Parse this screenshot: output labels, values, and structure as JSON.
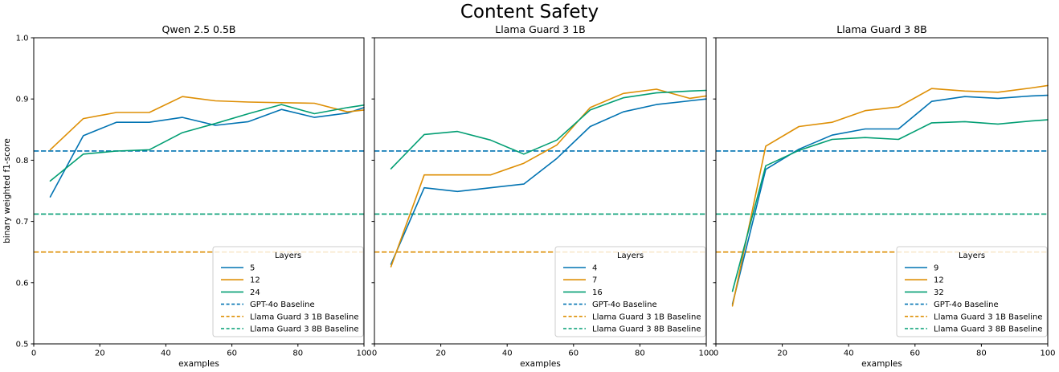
{
  "suptitle": "Content Safety",
  "figure": {
    "background": "#ffffff",
    "text_color": "#000000",
    "spine_color": "#000000",
    "colors": {
      "blue": "#0173B2",
      "orange": "#DE8F05",
      "green": "#029E73"
    },
    "legend": {
      "border_color": "#cccccc",
      "fill": "rgba(255,255,255,0.8)"
    }
  },
  "chart_data": [
    {
      "type": "line",
      "title": "Qwen 2.5 0.5B",
      "xlabel": "examples",
      "ylabel": "binary weighted f1-score",
      "legend_title": "Layers",
      "xlim": [
        0,
        100
      ],
      "ylim": [
        0.5,
        1.0
      ],
      "xticks": [
        0,
        20,
        40,
        60,
        80,
        100
      ],
      "yticks": [
        0.5,
        0.6,
        0.7,
        0.8,
        0.9,
        1.0
      ],
      "show_ytick_labels": true,
      "x": [
        5,
        15,
        25,
        35,
        45,
        55,
        65,
        75,
        85,
        95,
        100
      ],
      "series": [
        {
          "label": "5",
          "color": "blue",
          "dash": false,
          "values": [
            0.74,
            0.84,
            0.862,
            0.862,
            0.87,
            0.857,
            0.863,
            0.883,
            0.87,
            0.877,
            0.886
          ]
        },
        {
          "label": "12",
          "color": "orange",
          "dash": false,
          "values": [
            0.817,
            0.868,
            0.878,
            0.878,
            0.904,
            0.897,
            0.895,
            0.894,
            0.893,
            0.879,
            0.882
          ]
        },
        {
          "label": "24",
          "color": "green",
          "dash": false,
          "values": [
            0.766,
            0.81,
            0.815,
            0.817,
            0.845,
            0.86,
            0.876,
            0.891,
            0.876,
            0.886,
            0.89
          ]
        },
        {
          "label": "GPT-4o Baseline",
          "color": "blue",
          "dash": true,
          "constant": 0.815
        },
        {
          "label": "Llama Guard 3 1B Baseline",
          "color": "orange",
          "dash": true,
          "constant": 0.65
        },
        {
          "label": "Llama Guard 3 8B Baseline",
          "color": "green",
          "dash": true,
          "constant": 0.712
        }
      ]
    },
    {
      "type": "line",
      "title": "Llama Guard 3 1B",
      "xlabel": "examples",
      "ylabel": "",
      "legend_title": "Layers",
      "xlim": [
        0,
        100
      ],
      "ylim": [
        0.5,
        1.0
      ],
      "xticks": [
        0,
        20,
        40,
        60,
        80,
        100
      ],
      "yticks": [
        0.5,
        0.6,
        0.7,
        0.8,
        0.9,
        1.0
      ],
      "show_ytick_labels": false,
      "x": [
        5,
        15,
        25,
        35,
        45,
        55,
        65,
        75,
        85,
        95,
        100
      ],
      "series": [
        {
          "label": "4",
          "color": "blue",
          "dash": false,
          "values": [
            0.63,
            0.755,
            0.749,
            0.755,
            0.761,
            0.803,
            0.855,
            0.879,
            0.891,
            0.897,
            0.9
          ]
        },
        {
          "label": "7",
          "color": "orange",
          "dash": false,
          "values": [
            0.626,
            0.776,
            0.776,
            0.776,
            0.795,
            0.825,
            0.886,
            0.909,
            0.916,
            0.901,
            0.905
          ]
        },
        {
          "label": "16",
          "color": "green",
          "dash": false,
          "values": [
            0.786,
            0.842,
            0.847,
            0.833,
            0.81,
            0.833,
            0.882,
            0.902,
            0.91,
            0.913,
            0.914
          ]
        },
        {
          "label": "GPT-4o Baseline",
          "color": "blue",
          "dash": true,
          "constant": 0.815
        },
        {
          "label": "Llama Guard 3 1B Baseline",
          "color": "orange",
          "dash": true,
          "constant": 0.65
        },
        {
          "label": "Llama Guard 3 8B Baseline",
          "color": "green",
          "dash": true,
          "constant": 0.712
        }
      ]
    },
    {
      "type": "line",
      "title": "Llama Guard 3 8B",
      "xlabel": "examples",
      "ylabel": "",
      "legend_title": "Layers",
      "xlim": [
        0,
        100
      ],
      "ylim": [
        0.5,
        1.0
      ],
      "xticks": [
        0,
        20,
        40,
        60,
        80,
        100
      ],
      "yticks": [
        0.5,
        0.6,
        0.7,
        0.8,
        0.9,
        1.0
      ],
      "show_ytick_labels": false,
      "x": [
        5,
        15,
        25,
        35,
        45,
        55,
        65,
        75,
        85,
        95,
        100
      ],
      "series": [
        {
          "label": "9",
          "color": "blue",
          "dash": false,
          "values": [
            0.565,
            0.785,
            0.818,
            0.841,
            0.851,
            0.851,
            0.896,
            0.904,
            0.901,
            0.905,
            0.906
          ]
        },
        {
          "label": "12",
          "color": "orange",
          "dash": false,
          "values": [
            0.562,
            0.823,
            0.855,
            0.862,
            0.881,
            0.887,
            0.917,
            0.913,
            0.911,
            0.918,
            0.922
          ]
        },
        {
          "label": "32",
          "color": "green",
          "dash": false,
          "values": [
            0.586,
            0.791,
            0.816,
            0.834,
            0.837,
            0.834,
            0.861,
            0.863,
            0.859,
            0.864,
            0.866
          ]
        },
        {
          "label": "GPT-4o Baseline",
          "color": "blue",
          "dash": true,
          "constant": 0.815
        },
        {
          "label": "Llama Guard 3 1B Baseline",
          "color": "orange",
          "dash": true,
          "constant": 0.65
        },
        {
          "label": "Llama Guard 3 8B Baseline",
          "color": "green",
          "dash": true,
          "constant": 0.712
        }
      ]
    }
  ]
}
